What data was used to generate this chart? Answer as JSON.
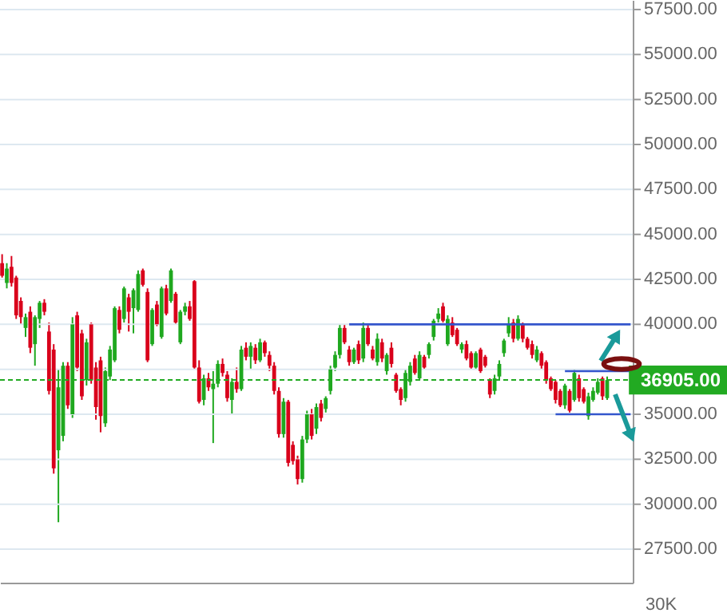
{
  "chart_data": {
    "type": "candlestick",
    "categories": [
      null,
      null,
      null,
      null,
      null,
      null,
      null,
      null,
      null,
      null,
      null,
      null,
      null,
      null,
      null,
      null,
      null,
      null,
      null,
      null,
      null,
      null,
      null,
      null,
      null,
      null,
      null,
      null,
      null,
      null,
      null,
      null,
      null,
      null,
      null,
      null,
      null,
      null,
      null,
      null,
      null,
      null,
      null,
      null,
      null,
      null,
      null,
      null,
      null,
      null,
      null,
      null,
      null,
      null,
      null,
      null,
      null,
      null,
      null,
      null,
      null,
      null,
      null,
      null,
      null,
      null,
      null,
      null,
      null,
      null,
      null,
      null,
      null,
      null,
      null,
      null,
      null,
      null,
      null,
      null,
      null,
      null,
      null,
      null,
      null,
      null,
      null,
      null,
      null,
      null,
      null,
      null,
      null,
      null,
      null,
      null,
      null,
      null,
      null,
      null,
      null,
      null,
      null,
      null,
      null,
      null,
      null,
      null,
      null,
      null,
      null,
      null,
      null,
      null,
      null,
      null,
      null,
      null,
      null,
      null,
      null,
      null,
      null,
      null,
      null,
      null,
      null,
      null,
      null,
      null,
      null,
      null,
      null,
      null,
      null
    ],
    "ohlc": [
      [
        43400,
        43900,
        42600,
        42700
      ],
      [
        42300,
        43400,
        42000,
        43100
      ],
      [
        43200,
        43800,
        42100,
        42300
      ],
      [
        42600,
        42700,
        40300,
        40500
      ],
      [
        41300,
        41500,
        40000,
        40400
      ],
      [
        39800,
        40600,
        39300,
        40400
      ],
      [
        40700,
        41000,
        38400,
        38700
      ],
      [
        38900,
        40500,
        37700,
        40400
      ],
      [
        40300,
        41300,
        39800,
        41200
      ],
      [
        41200,
        41400,
        40500,
        40700
      ],
      [
        39600,
        40100,
        36100,
        36300
      ],
      [
        38600,
        38900,
        31700,
        32000
      ],
      [
        33000,
        37500,
        29000,
        36500
      ],
      [
        33800,
        37900,
        33500,
        37700
      ],
      [
        37700,
        37900,
        35300,
        35500
      ],
      [
        35000,
        40400,
        34800,
        40000
      ],
      [
        40500,
        40700,
        37400,
        37600
      ],
      [
        39500,
        39700,
        35800,
        36000
      ],
      [
        36900,
        39200,
        36600,
        39000
      ],
      [
        40000,
        40100,
        36700,
        36900
      ],
      [
        37600,
        37900,
        34700,
        35400
      ],
      [
        38000,
        38200,
        34000,
        34900
      ],
      [
        34500,
        37600,
        34300,
        37400
      ],
      [
        37100,
        38800,
        36900,
        38600
      ],
      [
        38000,
        41000,
        37900,
        40900
      ],
      [
        40800,
        41000,
        39500,
        39700
      ],
      [
        40300,
        42100,
        40100,
        42000
      ],
      [
        41500,
        41700,
        39600,
        40700
      ],
      [
        40900,
        42000,
        39500,
        41900
      ],
      [
        40800,
        43000,
        40700,
        42800
      ],
      [
        43000,
        43100,
        42100,
        42200
      ],
      [
        41800,
        42000,
        37900,
        38000
      ],
      [
        38900,
        40900,
        38800,
        40800
      ],
      [
        41100,
        41300,
        39900,
        40000
      ],
      [
        39300,
        42100,
        39200,
        42000
      ],
      [
        42000,
        42200,
        40500,
        40600
      ],
      [
        41300,
        43100,
        41200,
        43000
      ],
      [
        41700,
        41800,
        40000,
        40100
      ],
      [
        39000,
        40800,
        38900,
        40700
      ],
      [
        40700,
        41200,
        40500,
        41000
      ],
      [
        41000,
        41300,
        40200,
        40300
      ],
      [
        42400,
        42500,
        37500,
        37600
      ],
      [
        37600,
        38000,
        35600,
        35700
      ],
      [
        35800,
        37200,
        35500,
        37000
      ],
      [
        37000,
        37300,
        36300,
        36500
      ],
      [
        36400,
        37400,
        33400,
        36700
      ],
      [
        36700,
        38000,
        36500,
        37800
      ],
      [
        37800,
        38100,
        37100,
        37300
      ],
      [
        37200,
        37400,
        35700,
        35900
      ],
      [
        35800,
        37000,
        35000,
        36800
      ],
      [
        36800,
        37600,
        36200,
        36400
      ],
      [
        36400,
        38800,
        36300,
        38600
      ],
      [
        38700,
        39000,
        38000,
        38200
      ],
      [
        38200,
        39000,
        37500,
        38800
      ],
      [
        38700,
        38900,
        37800,
        38000
      ],
      [
        38000,
        39200,
        37900,
        39000
      ],
      [
        39000,
        39100,
        38200,
        38400
      ],
      [
        38300,
        38500,
        37400,
        37700
      ],
      [
        37700,
        37900,
        36100,
        36300
      ],
      [
        36300,
        36500,
        33700,
        33900
      ],
      [
        33900,
        35900,
        33700,
        35700
      ],
      [
        35700,
        35800,
        32100,
        32300
      ],
      [
        33300,
        33500,
        32200,
        32400
      ],
      [
        32500,
        32700,
        31100,
        31400
      ],
      [
        31400,
        33800,
        31200,
        33600
      ],
      [
        33600,
        35200,
        33400,
        35000
      ],
      [
        35000,
        35300,
        33600,
        33800
      ],
      [
        34200,
        35600,
        33900,
        35400
      ],
      [
        35600,
        35800,
        34600,
        34800
      ],
      [
        35300,
        36000,
        35100,
        35900
      ],
      [
        36300,
        37700,
        36100,
        37500
      ],
      [
        37600,
        38500,
        37400,
        38300
      ],
      [
        38300,
        40000,
        38100,
        39800
      ],
      [
        39800,
        40000,
        38900,
        39000
      ],
      [
        38600,
        38800,
        37700,
        37900
      ],
      [
        37900,
        38700,
        37800,
        38600
      ],
      [
        38900,
        39100,
        37800,
        38000
      ],
      [
        38100,
        40100,
        37900,
        39800
      ],
      [
        39800,
        40000,
        38800,
        38900
      ],
      [
        38600,
        38800,
        38000,
        38100
      ],
      [
        37900,
        39500,
        37700,
        39200
      ],
      [
        39000,
        39200,
        37900,
        38100
      ],
      [
        37400,
        38400,
        37200,
        38300
      ],
      [
        38700,
        39000,
        37600,
        37800
      ],
      [
        37200,
        37300,
        36200,
        36300
      ],
      [
        36400,
        36500,
        35500,
        35800
      ],
      [
        35900,
        37500,
        35700,
        37300
      ],
      [
        36800,
        37900,
        36600,
        37700
      ],
      [
        38100,
        38300,
        37200,
        37300
      ],
      [
        37000,
        38500,
        36900,
        38300
      ],
      [
        38200,
        38300,
        37500,
        37600
      ],
      [
        38300,
        39000,
        38100,
        38900
      ],
      [
        39300,
        40300,
        39100,
        40200
      ],
      [
        40300,
        40900,
        40100,
        40600
      ],
      [
        41000,
        41200,
        40100,
        40200
      ],
      [
        38900,
        40500,
        38800,
        40300
      ],
      [
        40100,
        40400,
        39300,
        39400
      ],
      [
        39700,
        39800,
        38800,
        38900
      ],
      [
        38600,
        39000,
        38400,
        38900
      ],
      [
        38900,
        39100,
        38000,
        38100
      ],
      [
        38400,
        38500,
        37500,
        37600
      ],
      [
        37600,
        38500,
        37500,
        38400
      ],
      [
        38600,
        38700,
        37300,
        37400
      ],
      [
        38200,
        38300,
        37600,
        37700
      ],
      [
        36900,
        37000,
        35900,
        36100
      ],
      [
        36300,
        37200,
        36100,
        37000
      ],
      [
        37100,
        38000,
        36900,
        37800
      ],
      [
        38400,
        39200,
        38200,
        39100
      ],
      [
        39500,
        40400,
        39300,
        40000
      ],
      [
        40100,
        40300,
        39000,
        39200
      ],
      [
        39200,
        40500,
        39100,
        40300
      ],
      [
        40000,
        40100,
        39000,
        39200
      ],
      [
        39200,
        39300,
        38600,
        38700
      ],
      [
        38900,
        39100,
        38100,
        38300
      ],
      [
        38000,
        38800,
        37900,
        38600
      ],
      [
        38400,
        38500,
        37500,
        37700
      ],
      [
        37900,
        38000,
        36700,
        36900
      ],
      [
        37000,
        37100,
        36300,
        36400
      ],
      [
        36800,
        36900,
        35600,
        35800
      ],
      [
        36300,
        36400,
        35400,
        35500
      ],
      [
        35500,
        36700,
        35300,
        36600
      ],
      [
        36300,
        36400,
        35100,
        35200
      ],
      [
        35800,
        37500,
        35700,
        37300
      ],
      [
        37000,
        37200,
        35700,
        35900
      ],
      [
        36400,
        36500,
        35600,
        35700
      ],
      [
        34900,
        36200,
        34700,
        36000
      ],
      [
        35800,
        36500,
        35700,
        36300
      ],
      [
        36200,
        37000,
        36100,
        36800
      ],
      [
        37000,
        37100,
        35800,
        36000
      ],
      [
        35900,
        37100,
        35800,
        36905
      ],
      null,
      null,
      null,
      null,
      null
    ],
    "colors": [
      "#d9001b",
      "#1fa81f",
      "#d9001b",
      "#d9001b",
      "#d9001b",
      "#1fa81f",
      "#d9001b",
      "#1fa81f",
      "#1fa81f",
      "#d9001b",
      "#d9001b",
      "#d9001b",
      "#1fa81f",
      "#1fa81f",
      "#d9001b",
      "#1fa81f",
      "#d9001b",
      "#d9001b",
      "#1fa81f",
      "#d9001b",
      "#d9001b",
      "#d9001b",
      "#1fa81f",
      "#1fa81f",
      "#1fa81f",
      "#d9001b",
      "#1fa81f",
      "#d9001b",
      "#1fa81f",
      "#1fa81f",
      "#d9001b",
      "#d9001b",
      "#1fa81f",
      "#d9001b",
      "#1fa81f",
      "#d9001b",
      "#1fa81f",
      "#d9001b",
      "#1fa81f",
      "#1fa81f",
      "#d9001b",
      "#d9001b",
      "#d9001b",
      "#1fa81f",
      "#d9001b",
      "#1fa81f",
      "#1fa81f",
      "#d9001b",
      "#d9001b",
      "#1fa81f",
      "#d9001b",
      "#1fa81f",
      "#d9001b",
      "#1fa81f",
      "#d9001b",
      "#1fa81f",
      "#d9001b",
      "#d9001b",
      "#d9001b",
      "#d9001b",
      "#1fa81f",
      "#d9001b",
      "#d9001b",
      "#d9001b",
      "#1fa81f",
      "#1fa81f",
      "#d9001b",
      "#1fa81f",
      "#d9001b",
      "#1fa81f",
      "#1fa81f",
      "#1fa81f",
      "#1fa81f",
      "#d9001b",
      "#d9001b",
      "#1fa81f",
      "#d9001b",
      "#1fa81f",
      "#d9001b",
      "#d9001b",
      "#1fa81f",
      "#d9001b",
      "#1fa81f",
      "#d9001b",
      "#d9001b",
      "#d9001b",
      "#1fa81f",
      "#1fa81f",
      "#d9001b",
      "#1fa81f",
      "#d9001b",
      "#1fa81f",
      "#1fa81f",
      "#1fa81f",
      "#d9001b",
      "#1fa81f",
      "#d9001b",
      "#d9001b",
      "#1fa81f",
      "#d9001b",
      "#d9001b",
      "#1fa81f",
      "#d9001b",
      "#d9001b",
      "#d9001b",
      "#1fa81f",
      "#1fa81f",
      "#1fa81f",
      "#1fa81f",
      "#d9001b",
      "#1fa81f",
      "#d9001b",
      "#d9001b",
      "#d9001b",
      "#1fa81f",
      "#d9001b",
      "#d9001b",
      "#d9001b",
      "#d9001b",
      "#d9001b",
      "#1fa81f",
      "#d9001b",
      "#1fa81f",
      "#d9001b",
      "#d9001b",
      "#1fa81f",
      "#1fa81f",
      "#1fa81f",
      "#d9001b",
      "#1fa81f",
      null,
      null,
      null,
      null,
      null
    ],
    "series": [
      {
        "type": "line",
        "color": "#3355cc",
        "values": [
          null,
          null,
          null,
          null,
          null,
          null,
          null,
          null,
          null,
          null,
          null,
          null,
          null,
          null,
          null,
          null,
          null,
          null,
          null,
          null,
          null,
          null,
          null,
          null,
          null,
          null,
          null,
          null,
          null,
          null,
          null,
          null,
          null,
          null,
          null,
          null,
          null,
          null,
          null,
          null,
          null,
          null,
          null,
          null,
          null,
          null,
          null,
          null,
          null,
          null,
          null,
          null,
          null,
          null,
          null,
          null,
          null,
          null,
          null,
          null,
          null,
          null,
          null,
          null,
          null,
          null,
          null,
          null,
          null,
          null,
          null,
          null,
          null,
          null,
          40000,
          40000,
          40000,
          40000,
          40000,
          40000,
          40000,
          40000,
          40000,
          40000,
          40000,
          40000,
          40000,
          40000,
          40000,
          40000,
          40000,
          40000,
          40000,
          40000,
          40000,
          40000,
          40000,
          40000,
          40000,
          40000,
          40000,
          40000,
          40000,
          40000,
          40000,
          40000,
          40000,
          40000,
          40000,
          40000,
          40000,
          40000,
          40000,
          40000,
          40000,
          40000,
          40000,
          40000,
          40000,
          40000,
          40000,
          40000,
          40000,
          40000,
          40000,
          40000,
          40000,
          40000,
          40000,
          40000,
          40000,
          40000,
          40000,
          40000,
          40000
        ]
      },
      {
        "type": "line",
        "color": "#3355cc",
        "values": [
          null,
          null,
          null,
          null,
          null,
          null,
          null,
          null,
          null,
          null,
          null,
          null,
          null,
          null,
          null,
          null,
          null,
          null,
          null,
          null,
          null,
          null,
          null,
          null,
          null,
          null,
          null,
          null,
          null,
          null,
          null,
          null,
          null,
          null,
          null,
          null,
          null,
          null,
          null,
          null,
          null,
          null,
          null,
          null,
          null,
          null,
          null,
          null,
          null,
          null,
          null,
          null,
          null,
          null,
          null,
          null,
          null,
          null,
          null,
          null,
          null,
          null,
          null,
          null,
          null,
          null,
          null,
          null,
          null,
          null,
          null,
          null,
          null,
          null,
          null,
          null,
          null,
          null,
          null,
          null,
          null,
          null,
          null,
          null,
          null,
          null,
          null,
          null,
          null,
          null,
          null,
          null,
          null,
          null,
          null,
          null,
          null,
          null,
          null,
          null,
          null,
          null,
          null,
          null,
          null,
          null,
          null,
          null,
          null,
          null,
          null,
          null,
          null,
          null,
          null,
          null,
          null,
          null,
          null,
          null,
          37400,
          37400,
          37400,
          37400,
          37400,
          37400,
          37400,
          37400,
          37400,
          37400,
          37400,
          37400,
          37400,
          37400,
          37400
        ]
      },
      {
        "type": "line",
        "color": "#3355cc",
        "values": [
          null,
          null,
          null,
          null,
          null,
          null,
          null,
          null,
          null,
          null,
          null,
          null,
          null,
          null,
          null,
          null,
          null,
          null,
          null,
          null,
          null,
          null,
          null,
          null,
          null,
          null,
          null,
          null,
          null,
          null,
          null,
          null,
          null,
          null,
          null,
          null,
          null,
          null,
          null,
          null,
          null,
          null,
          null,
          null,
          null,
          null,
          null,
          null,
          null,
          null,
          null,
          null,
          null,
          null,
          null,
          null,
          null,
          null,
          null,
          null,
          null,
          null,
          null,
          null,
          null,
          null,
          null,
          null,
          null,
          null,
          null,
          null,
          null,
          null,
          null,
          null,
          null,
          null,
          null,
          null,
          null,
          null,
          null,
          null,
          null,
          null,
          null,
          null,
          null,
          null,
          null,
          null,
          null,
          null,
          null,
          null,
          null,
          null,
          null,
          null,
          null,
          null,
          null,
          null,
          null,
          null,
          null,
          null,
          null,
          null,
          null,
          null,
          null,
          null,
          null,
          null,
          null,
          null,
          35000,
          35000,
          35000,
          35000,
          35000,
          35000,
          35000,
          35000,
          35000,
          35000,
          35000,
          35000,
          35000,
          35000,
          35000,
          35000,
          35000
        ]
      }
    ],
    "ylim": [
      25640,
      58030
    ],
    "yticks": [
      {
        "value": 27500,
        "label": "27500.00"
      },
      {
        "value": 30000,
        "label": "30000.00"
      },
      {
        "value": 32500,
        "label": "32500.00"
      },
      {
        "value": 35000,
        "label": "35000.00"
      },
      {
        "value": 37500,
        "label": null
      },
      {
        "value": 40000,
        "label": "40000.00"
      },
      {
        "value": 42500,
        "label": "42500.00"
      },
      {
        "value": 45000,
        "label": "45000.00"
      },
      {
        "value": 47500,
        "label": "47500.00"
      },
      {
        "value": 50000,
        "label": "50000.00"
      },
      {
        "value": 52500,
        "label": "52500.00"
      },
      {
        "value": 55000,
        "label": "55000.00"
      },
      {
        "value": 57500,
        "label": "57500.00"
      }
    ],
    "ref_lines": [
      {
        "axis": "y",
        "value": 36905,
        "label": "36905.00",
        "color": "#22aa22",
        "line_style": "dotted"
      }
    ],
    "annotations": [
      "30K"
    ],
    "grid": "y",
    "tick_labels": "y"
  }
}
